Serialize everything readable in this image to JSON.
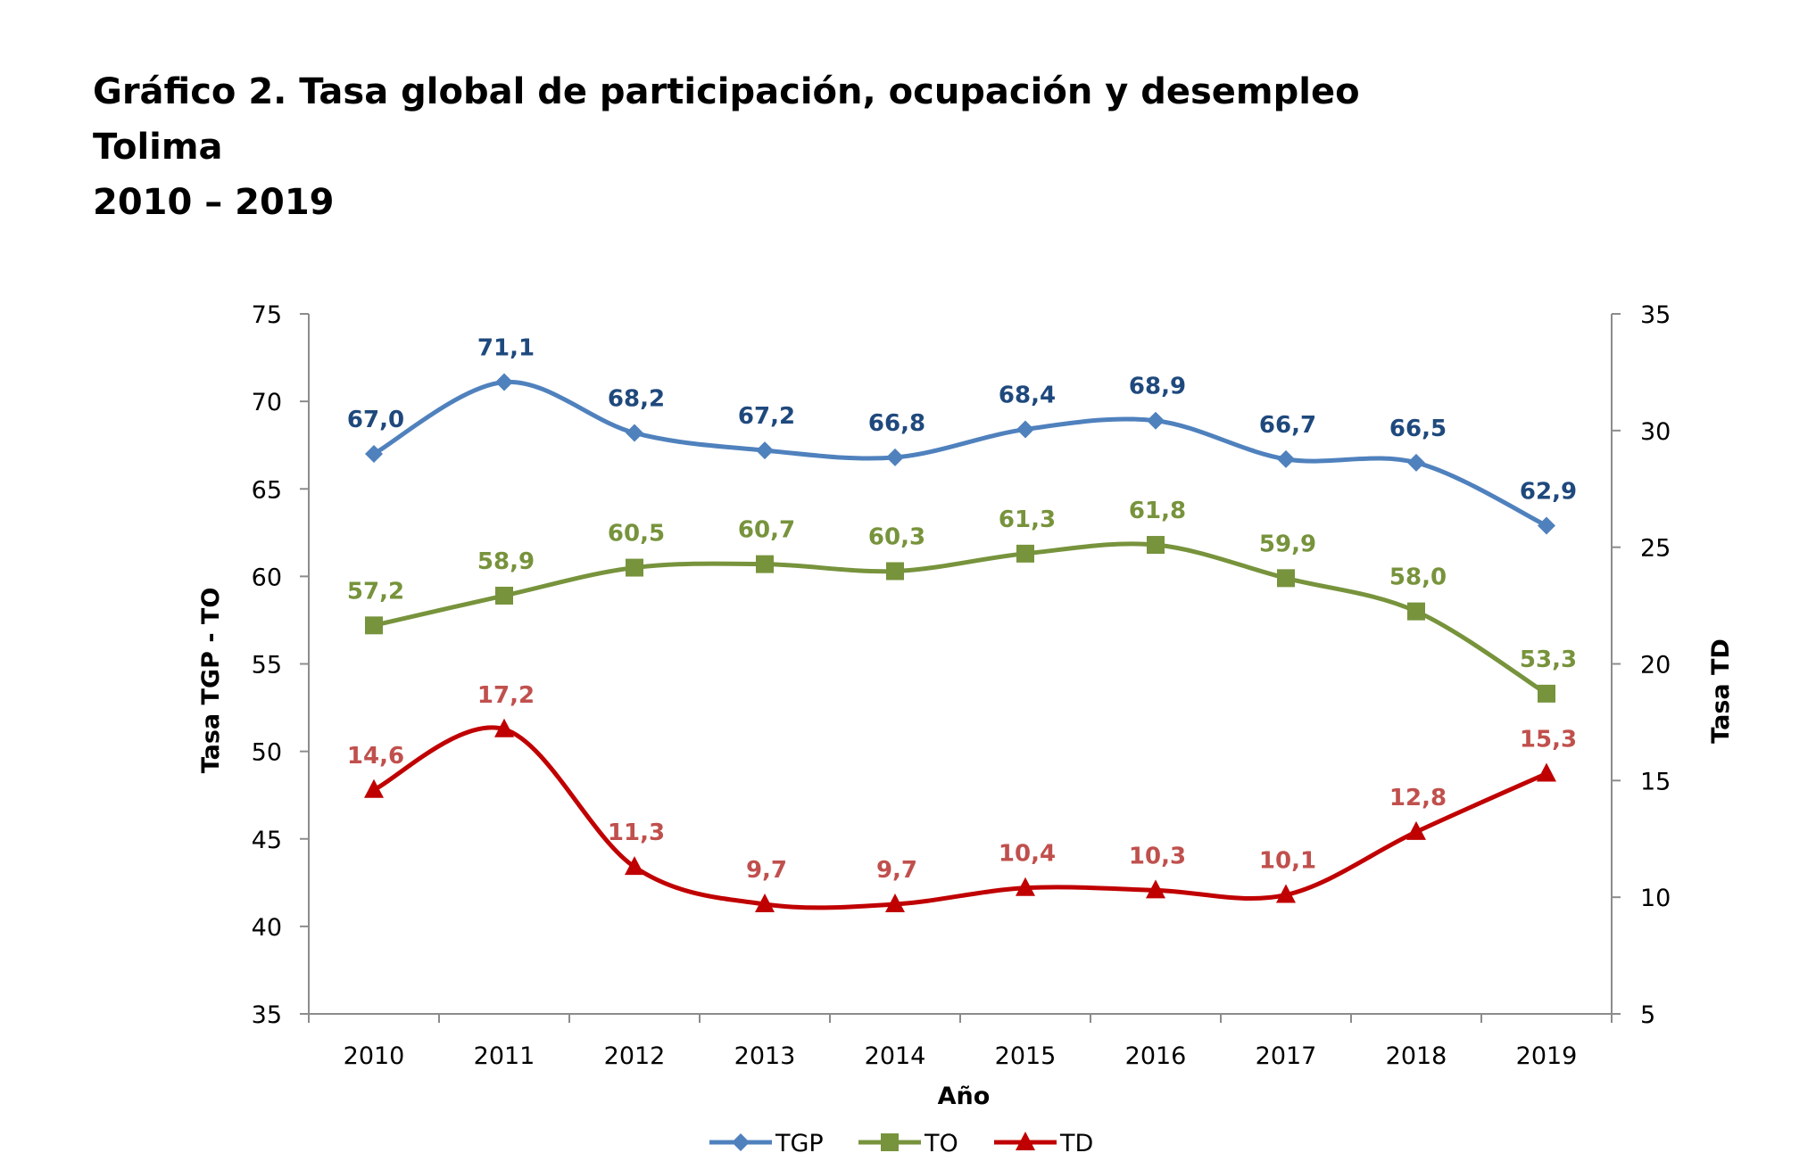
{
  "title": {
    "line1": "Gráfico 2. Tasa global de participación, ocupación y desempleo",
    "line2": "Tolima",
    "line3": "2010 – 2019"
  },
  "chart_data": {
    "type": "line",
    "categories": [
      "2010",
      "2011",
      "2012",
      "2013",
      "2014",
      "2015",
      "2016",
      "2017",
      "2018",
      "2019"
    ],
    "xlabel": "Año",
    "ylabel": "Tasa TGP - TO",
    "y2label": "Tasa TD",
    "ylim": [
      35,
      75
    ],
    "yticks": [
      "35",
      "40",
      "45",
      "50",
      "55",
      "60",
      "65",
      "70",
      "75"
    ],
    "y2lim": [
      5,
      35
    ],
    "y2ticks": [
      "5",
      "10",
      "15",
      "20",
      "25",
      "30",
      "35"
    ],
    "grid": false,
    "legend_position": "bottom",
    "series": [
      {
        "name": "TGP",
        "axis": "left",
        "color": "#4f81bd",
        "label_color": "#1f497d",
        "marker": "diamond",
        "values": [
          67.0,
          71.1,
          68.2,
          67.2,
          66.8,
          68.4,
          68.9,
          66.7,
          66.5,
          62.9
        ],
        "labels": [
          "67,0",
          "71,1",
          "68,2",
          "67,2",
          "66,8",
          "68,4",
          "68,9",
          "66,7",
          "66,5",
          "62,9"
        ]
      },
      {
        "name": "TO",
        "axis": "left",
        "color": "#77933c",
        "label_color": "#77933c",
        "marker": "square",
        "values": [
          57.2,
          58.9,
          60.5,
          60.7,
          60.3,
          61.3,
          61.8,
          59.9,
          58.0,
          53.3
        ],
        "labels": [
          "57,2",
          "58,9",
          "60,5",
          "60,7",
          "60,3",
          "61,3",
          "61,8",
          "59,9",
          "58,0",
          "53,3"
        ]
      },
      {
        "name": "TD",
        "axis": "right",
        "color": "#c00000",
        "label_color": "#c0504d",
        "marker": "triangle",
        "values": [
          14.6,
          17.2,
          11.3,
          9.7,
          9.7,
          10.4,
          10.3,
          10.1,
          12.8,
          15.3
        ],
        "labels": [
          "14,6",
          "17,2",
          "11,3",
          "9,7",
          "9,7",
          "10,4",
          "10,3",
          "10,1",
          "12,8",
          "15,3"
        ]
      }
    ]
  }
}
